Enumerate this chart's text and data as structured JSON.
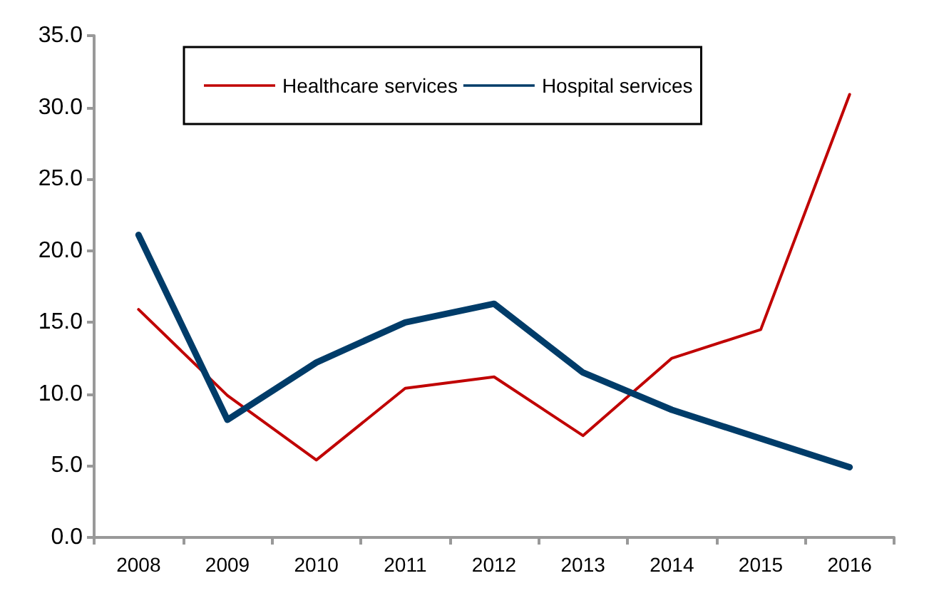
{
  "chart_data": {
    "type": "line",
    "categories": [
      "2008",
      "2009",
      "2010",
      "2011",
      "2012",
      "2013",
      "2014",
      "2015",
      "2016"
    ],
    "series": [
      {
        "name": "Healthcare services",
        "color": "#c00000",
        "values": [
          15.9,
          9.9,
          5.4,
          10.4,
          11.2,
          7.1,
          12.5,
          14.5,
          30.9
        ]
      },
      {
        "name": "Hospital services",
        "color": "#003c69",
        "values": [
          21.1,
          8.2,
          12.2,
          15.0,
          16.3,
          11.5,
          8.9,
          6.9,
          4.9
        ]
      }
    ],
    "ylim": [
      0,
      35
    ],
    "yticks": [
      {
        "value": 0,
        "label": "0.0"
      },
      {
        "value": 5,
        "label": "5.0"
      },
      {
        "value": 10,
        "label": "10.0"
      },
      {
        "value": 15,
        "label": "15.0"
      },
      {
        "value": 20,
        "label": "20.0"
      },
      {
        "value": 25,
        "label": "25.0"
      },
      {
        "value": 30,
        "label": "30.0"
      },
      {
        "value": 35,
        "label": "35.0"
      }
    ],
    "grid": false,
    "legend": "top",
    "marker": "none",
    "line_style": "solid"
  }
}
